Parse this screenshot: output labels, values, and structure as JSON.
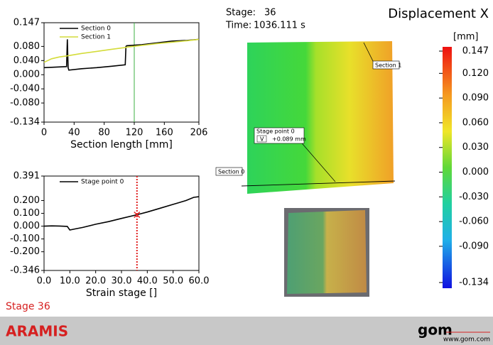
{
  "chart_data": [
    {
      "type": "line",
      "xlabel": "Section length [mm]",
      "x": [
        0,
        10,
        20,
        30,
        31,
        32,
        33,
        50,
        70,
        90,
        108,
        109,
        110,
        130,
        150,
        170,
        190,
        206
      ],
      "series": [
        {
          "name": "Section 0",
          "color": "#000000",
          "values": [
            0.02,
            0.021,
            0.022,
            0.023,
            0.1,
            0.02,
            0.013,
            0.017,
            0.02,
            0.024,
            0.028,
            0.08,
            0.082,
            0.085,
            0.09,
            0.095,
            0.097,
            0.1
          ]
        },
        {
          "name": "Section 1",
          "color": "#d4dc3a",
          "values": [
            0.035,
            0.045,
            0.05,
            0.053,
            0.053,
            0.054,
            0.054,
            0.06,
            0.066,
            0.072,
            0.077,
            0.077,
            0.078,
            0.083,
            0.088,
            0.092,
            0.096,
            0.1
          ]
        }
      ],
      "xlim": [
        0,
        206
      ],
      "xticks": [
        0,
        40,
        80,
        120,
        160,
        206
      ],
      "ylim": [
        -0.134,
        0.147
      ],
      "yticks": [
        -0.134,
        {
          "value": -0.08,
          "label": "-0.080"
        },
        {
          "value": -0.04,
          "label": "-0.040"
        },
        {
          "value": 0,
          "label": "0.000"
        },
        {
          "value": 0.04,
          "label": "0.040"
        },
        {
          "value": 0.08,
          "label": "0.080"
        },
        0.147
      ],
      "cursor_x": 120,
      "cursor_color": "#3cb043",
      "cursor_dotted": false
    },
    {
      "type": "line",
      "xlabel": "Strain stage []",
      "x": [
        0,
        3,
        6,
        9,
        10,
        12,
        15,
        20,
        25,
        30,
        36,
        40,
        45,
        50,
        55,
        58,
        60
      ],
      "series": [
        {
          "name": "Stage point 0",
          "color": "#000000",
          "values": [
            0,
            0.002,
            0.001,
            -0.002,
            -0.03,
            -0.022,
            -0.01,
            0.015,
            0.035,
            0.06,
            0.089,
            0.11,
            0.14,
            0.17,
            0.2,
            0.225,
            0.23
          ]
        }
      ],
      "xlim": [
        0,
        60
      ],
      "xticks": [
        {
          "value": 0,
          "label": "0.0"
        },
        {
          "value": 10,
          "label": "10.0"
        },
        {
          "value": 20,
          "label": "20.0"
        },
        {
          "value": 30,
          "label": "30.0"
        },
        {
          "value": 40,
          "label": "40.0"
        },
        {
          "value": 50,
          "label": "50.0"
        },
        {
          "value": 60,
          "label": "60.0"
        }
      ],
      "ylim": [
        -0.346,
        0.391
      ],
      "yticks": [
        -0.346,
        {
          "value": -0.2,
          "label": "-0.200"
        },
        {
          "value": -0.1,
          "label": "-0.100"
        },
        {
          "value": 0,
          "label": "0.000"
        },
        {
          "value": 0.1,
          "label": "0.100"
        },
        {
          "value": 0.2,
          "label": "0.200"
        },
        0.391
      ],
      "cursor_x": 36,
      "cursor_color": "#e02020",
      "cursor_dotted": true,
      "marker": {
        "x": 36,
        "y": 0.089
      }
    }
  ],
  "header": {
    "stage_label": "Stage:",
    "stage": "36",
    "time_label": "Time:",
    "time": "1036.111 s",
    "title": "Displacement X"
  },
  "colorbar": {
    "unit": "[mm]",
    "lim": [
      -0.134,
      0.147
    ],
    "ticks": [
      0.147,
      {
        "value": 0.12,
        "label": "0.120"
      },
      {
        "value": 0.09,
        "label": "0.090"
      },
      {
        "value": 0.06,
        "label": "0.060"
      },
      {
        "value": 0.03,
        "label": "0.030"
      },
      {
        "value": 0,
        "label": "0.000"
      },
      {
        "value": -0.03,
        "label": "-0.030"
      },
      {
        "value": -0.06,
        "label": "-0.060"
      },
      {
        "value": -0.09,
        "label": "-0.090"
      },
      -0.134
    ]
  },
  "overlay": {
    "section_1": "Section 1",
    "section_0": "Section 0",
    "stage_point": "Stage point 0",
    "component": "V",
    "value": "+0.089 mm"
  },
  "status": "Stage 36",
  "footer": {
    "product": "ARAMIS",
    "logo": "gom",
    "url": "www.gom.com"
  }
}
